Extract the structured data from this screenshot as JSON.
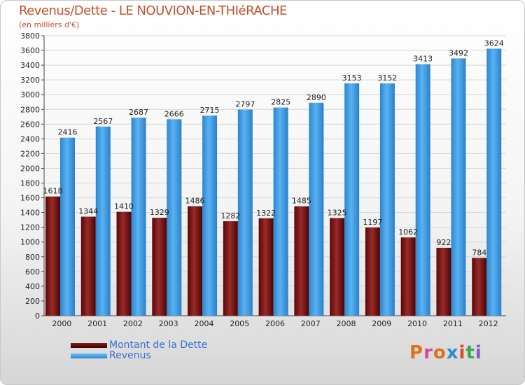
{
  "header": {
    "title": "Revenus/Dette - LE NOUVION-EN-THIéRACHE",
    "subtitle": "(en milliers d'€)"
  },
  "legend": {
    "items": [
      {
        "label": "Montant de la Dette",
        "color": "#6b0a0a"
      },
      {
        "label": "Revenus",
        "color": "#4aa3e8"
      }
    ]
  },
  "logo": {
    "text": "Proxiti",
    "colors": [
      "#e07020",
      "#d04a9a",
      "#e07020",
      "#2a8fd6",
      "#d84a2a",
      "#3aa84a",
      "#8a5ac8"
    ]
  },
  "chart_data": {
    "type": "bar",
    "title": "Revenus/Dette - LE NOUVION-EN-THIéRACHE",
    "subtitle": "(en milliers d'€)",
    "categories": [
      "2000",
      "2001",
      "2002",
      "2003",
      "2004",
      "2005",
      "2006",
      "2007",
      "2008",
      "2009",
      "2010",
      "2011",
      "2012"
    ],
    "series": [
      {
        "name": "Montant de la Dette",
        "color": "#6b0a0a",
        "values": [
          1618,
          1344,
          1410,
          1329,
          1486,
          1282,
          1322,
          1485,
          1325,
          1197,
          1062,
          922,
          784
        ],
        "labels": [
          "1618",
          "1344",
          "1410",
          "1329",
          "1486",
          "1282",
          "1322",
          "1485",
          "1325",
          "1197",
          "1062",
          "922",
          "784"
        ]
      },
      {
        "name": "Revenus",
        "color": "#4aa3e8",
        "values": [
          2416,
          2567,
          2687,
          2666,
          2715,
          2797,
          2825,
          2890,
          3153,
          3152,
          3413,
          3492,
          3624
        ],
        "labels": [
          "2416",
          "2567",
          "2687",
          "2666",
          "2715",
          "2797",
          "2825",
          "2890",
          "3153",
          "3152",
          "3413",
          "3492",
          "3624"
        ]
      }
    ],
    "ylim": [
      0,
      3800
    ],
    "yticks": [
      0,
      200,
      400,
      600,
      800,
      1000,
      1200,
      1400,
      1600,
      1800,
      2000,
      2200,
      2400,
      2600,
      2800,
      3000,
      3200,
      3400,
      3600,
      3800
    ],
    "grid": true,
    "legend_position": "bottom-left"
  }
}
